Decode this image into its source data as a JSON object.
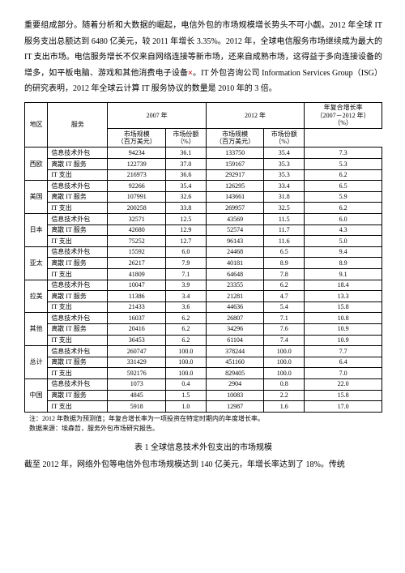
{
  "intro_paragraph": "重要组成部分。随着分析和大数据的崛起，电信外包的市场规模增长势头不可小觑。2012 年全球 IT 服务支出总额达到 6480 亿美元，较 2011 年增长 3.35%。2012 年，全球电信服务市场继续成为最大的 IT 支出市场。电信服务增长不仅来自网络连接等新市场，还来自成熟市场，这得益于多向连接设备的增多，如平板电脑、游戏和其他消费电子设备",
  "intro_paragraph_after_x": "。IT 外包咨询公司 Information Services Group（ISG）的研究表明，2012 年全球云计算 IT 服务协议的数量是 2010 年的 3 倍。",
  "table": {
    "head": {
      "region": "地区",
      "service": "服务",
      "y2007": "2007 年",
      "y2012": "2012 年",
      "cagr": "年复合增长率",
      "cagr_range": "（2007－2012 年）",
      "size": "市场规模",
      "size_unit": "（百万美元）",
      "share": "市场份额",
      "share_unit": "（%）",
      "cagr_unit": "（%）"
    },
    "regions": [
      {
        "name": "西欧",
        "rows": [
          {
            "svc": "信息技术外包",
            "s07": "94234",
            "p07": "36.1",
            "s12": "133750",
            "p12": "35.4",
            "g": "7.3"
          },
          {
            "svc": "离散 IT 服务",
            "s07": "122739",
            "p07": "37.0",
            "s12": "159167",
            "p12": "35.3",
            "g": "5.3"
          },
          {
            "svc": "IT 支出",
            "s07": "216973",
            "p07": "36.6",
            "s12": "292917",
            "p12": "35.3",
            "g": "6.2"
          }
        ]
      },
      {
        "name": "美国",
        "rows": [
          {
            "svc": "信息技术外包",
            "s07": "92266",
            "p07": "35.4",
            "s12": "126295",
            "p12": "33.4",
            "g": "6.5"
          },
          {
            "svc": "离散 IT 服务",
            "s07": "107991",
            "p07": "32.6",
            "s12": "143661",
            "p12": "31.8",
            "g": "5.9"
          },
          {
            "svc": "IT 支出",
            "s07": "200258",
            "p07": "33.8",
            "s12": "269957",
            "p12": "32.5",
            "g": "6.2"
          }
        ]
      },
      {
        "name": "日本",
        "rows": [
          {
            "svc": "信息技术外包",
            "s07": "32571",
            "p07": "12.5",
            "s12": "43569",
            "p12": "11.5",
            "g": "6.0"
          },
          {
            "svc": "离散 IT 服务",
            "s07": "42680",
            "p07": "12.9",
            "s12": "52574",
            "p12": "11.7",
            "g": "4.3"
          },
          {
            "svc": "IT 支出",
            "s07": "75252",
            "p07": "12.7",
            "s12": "96143",
            "p12": "11.6",
            "g": "5.0"
          }
        ]
      },
      {
        "name": "亚太",
        "rows": [
          {
            "svc": "信息技术外包",
            "s07": "15592",
            "p07": "6.0",
            "s12": "24468",
            "p12": "6.5",
            "g": "9.4"
          },
          {
            "svc": "离散 IT 服务",
            "s07": "26217",
            "p07": "7.9",
            "s12": "40181",
            "p12": "8.9",
            "g": "8.9"
          },
          {
            "svc": "IT 支出",
            "s07": "41809",
            "p07": "7.1",
            "s12": "64648",
            "p12": "7.8",
            "g": "9.1"
          }
        ]
      },
      {
        "name": "拉美",
        "rows": [
          {
            "svc": "信息技术外包",
            "s07": "10047",
            "p07": "3.9",
            "s12": "23355",
            "p12": "6.2",
            "g": "18.4"
          },
          {
            "svc": "离散 IT 服务",
            "s07": "11386",
            "p07": "3.4",
            "s12": "21281",
            "p12": "4.7",
            "g": "13.3"
          },
          {
            "svc": "IT 支出",
            "s07": "21433",
            "p07": "3.6",
            "s12": "44636",
            "p12": "5.4",
            "g": "15.8"
          }
        ]
      },
      {
        "name": "其他",
        "rows": [
          {
            "svc": "信息技术外包",
            "s07": "16037",
            "p07": "6.2",
            "s12": "26807",
            "p12": "7.1",
            "g": "10.8"
          },
          {
            "svc": "离散 IT 服务",
            "s07": "20416",
            "p07": "6.2",
            "s12": "34296",
            "p12": "7.6",
            "g": "10.9"
          },
          {
            "svc": "IT 支出",
            "s07": "36453",
            "p07": "6.2",
            "s12": "61104",
            "p12": "7.4",
            "g": "10.9"
          }
        ]
      },
      {
        "name": "总计",
        "rows": [
          {
            "svc": "信息技术外包",
            "s07": "260747",
            "p07": "100.0",
            "s12": "378244",
            "p12": "100.0",
            "g": "7.7"
          },
          {
            "svc": "离散 IT 服务",
            "s07": "331429",
            "p07": "100.0",
            "s12": "451160",
            "p12": "100.0",
            "g": "6.4"
          },
          {
            "svc": "IT 支出",
            "s07": "592176",
            "p07": "100.0",
            "s12": "829405",
            "p12": "100.0",
            "g": "7.0"
          }
        ]
      },
      {
        "name": "中国",
        "rows": [
          {
            "svc": "信息技术外包",
            "s07": "1073",
            "p07": "0.4",
            "s12": "2904",
            "p12": "0.8",
            "g": "22.0"
          },
          {
            "svc": "离散 IT 服务",
            "s07": "4845",
            "p07": "1.5",
            "s12": "10083",
            "p12": "2.2",
            "g": "15.8"
          },
          {
            "svc": "IT 支出",
            "s07": "5918",
            "p07": "1.0",
            "s12": "12987",
            "p12": "1.6",
            "g": "17.0"
          }
        ]
      }
    ]
  },
  "note_line1": "注：2012 年数据为预测值；年复合增长率为一项投资在特定时期内的年度增长率。",
  "note_line2": "数据来源：埃森哲，服务外包市场研究报告。",
  "caption": "表 1  全球信息技术外包支出的市场规模",
  "tail_paragraph": "截至 2012 年，网络外包等电信外包市场规模达到 140 亿美元，年增长率达到了 18%。传统"
}
